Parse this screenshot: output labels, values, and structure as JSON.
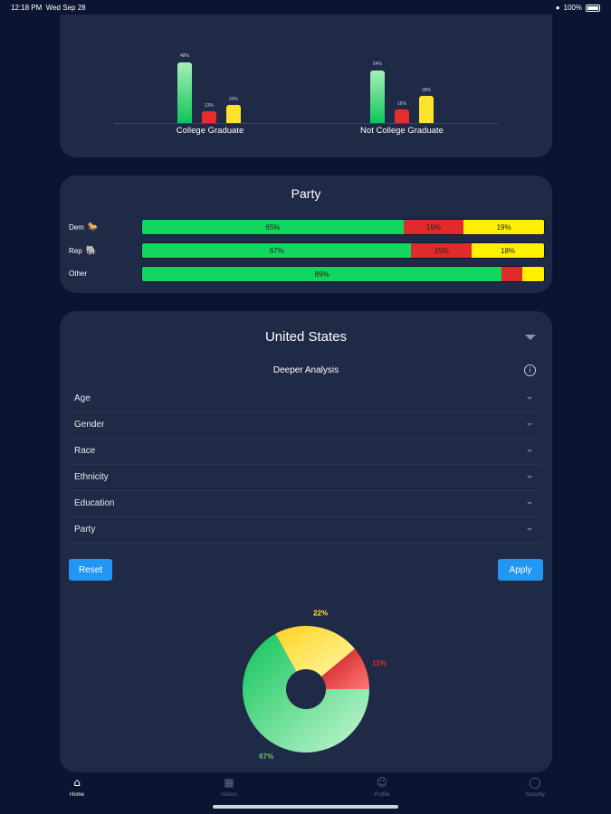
{
  "status_bar": {
    "time": "12:18 PM",
    "date": "Wed Sep 28",
    "battery": "100%"
  },
  "education": {
    "groups": [
      {
        "label": "College Graduate",
        "values": [
          {
            "pct": 48,
            "label": "48%"
          },
          {
            "pct": 13,
            "label": "13%"
          },
          {
            "pct": 20,
            "label": "20%"
          }
        ]
      },
      {
        "label": "Not College Graduate",
        "values": [
          {
            "pct": 54,
            "label": "54%"
          },
          {
            "pct": 16,
            "label": "16%"
          },
          {
            "pct": 28,
            "label": "28%"
          }
        ]
      }
    ]
  },
  "party": {
    "title": "Party",
    "rows": [
      {
        "label": "Dem",
        "icon": "donkey-icon",
        "segments": [
          {
            "pct": 65,
            "label": "65%"
          },
          {
            "pct": 15,
            "label": "15%"
          },
          {
            "pct": 19,
            "label": "19%"
          }
        ]
      },
      {
        "label": "Rep",
        "icon": "elephant-icon",
        "segments": [
          {
            "pct": 67,
            "label": "67%"
          },
          {
            "pct": 15,
            "label": "15%"
          },
          {
            "pct": 18,
            "label": "18%"
          }
        ]
      },
      {
        "label": "Other",
        "icon": "",
        "segments": [
          {
            "pct": 89,
            "label": "89%"
          },
          {
            "pct": 5,
            "label": ""
          },
          {
            "pct": 5,
            "label": ""
          }
        ]
      }
    ]
  },
  "us_panel": {
    "title": "United States",
    "subtitle": "Deeper Analysis",
    "filters": [
      "Age",
      "Gender",
      "Race",
      "Ethnicity",
      "Education",
      "Party"
    ],
    "reset_label": "Reset",
    "apply_label": "Apply"
  },
  "chart_data": {
    "type": "pie",
    "slices": [
      {
        "label": "67%",
        "value": 67,
        "color": "#1ecb5c"
      },
      {
        "label": "22%",
        "value": 22,
        "color": "#ffe22e"
      },
      {
        "label": "11%",
        "value": 11,
        "color": "#e52d2d"
      }
    ]
  },
  "nav": {
    "items": [
      {
        "label": "Home",
        "icon": "home-icon"
      },
      {
        "label": "Videos",
        "icon": "film-icon"
      },
      {
        "label": "Profile",
        "icon": "profile-icon"
      },
      {
        "label": "Security",
        "icon": "shield-icon"
      }
    ]
  },
  "colors": {
    "green": "#13d65f",
    "red": "#e02b2b",
    "yellow": "#fff000",
    "card": "#1f2a47",
    "background": "#0b1431",
    "accent": "#2196f3"
  }
}
